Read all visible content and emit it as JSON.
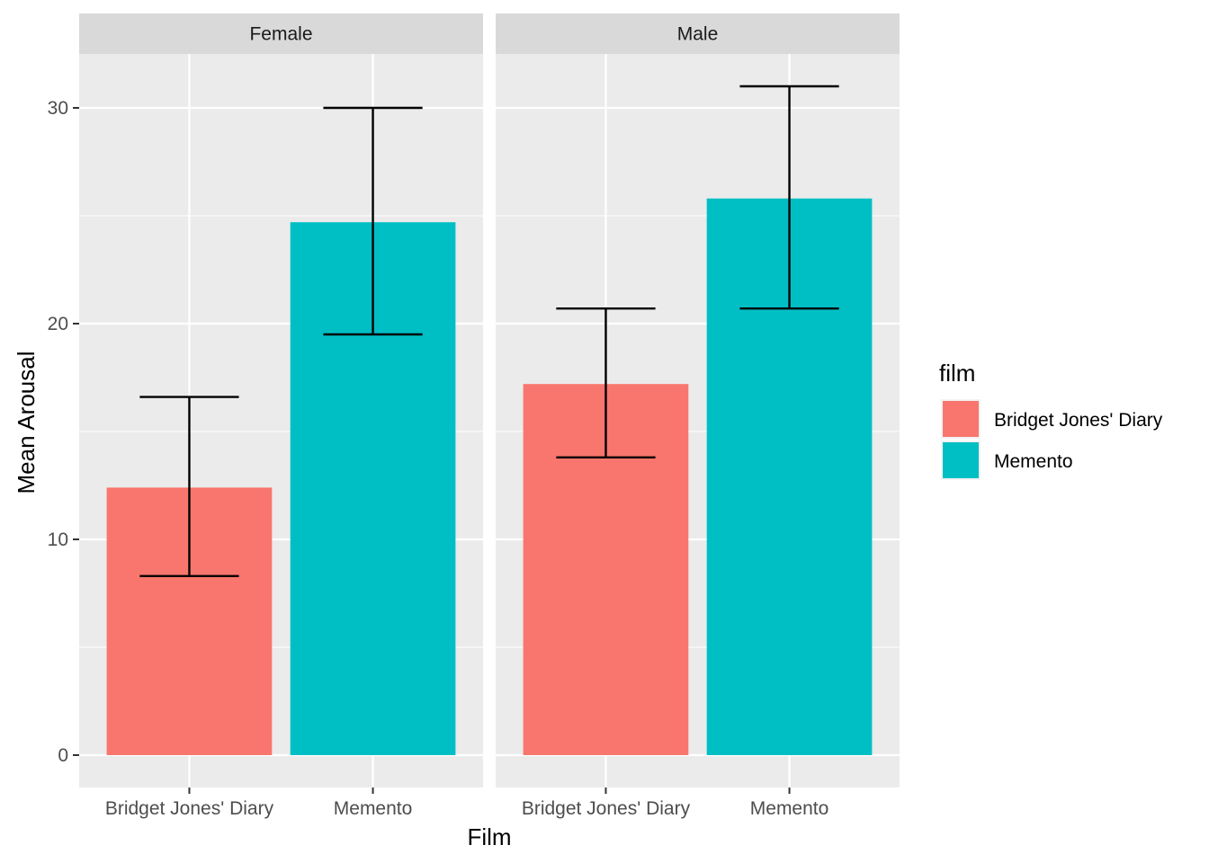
{
  "chart_data": {
    "type": "bar",
    "xlabel": "Film",
    "ylabel": "Mean Arousal",
    "ylim": [
      -1.5,
      32.5
    ],
    "y_ticks": [
      0,
      10,
      20,
      30
    ],
    "categories": [
      "Bridget Jones' Diary",
      "Memento"
    ],
    "facets": [
      {
        "name": "Female",
        "bars": [
          {
            "category": "Bridget Jones' Diary",
            "value": 12.4,
            "error_low": 8.3,
            "error_high": 16.6
          },
          {
            "category": "Memento",
            "value": 24.7,
            "error_low": 19.5,
            "error_high": 30.0
          }
        ]
      },
      {
        "name": "Male",
        "bars": [
          {
            "category": "Bridget Jones' Diary",
            "value": 17.2,
            "error_low": 13.8,
            "error_high": 20.7
          },
          {
            "category": "Memento",
            "value": 25.8,
            "error_low": 20.7,
            "error_high": 31.0
          }
        ]
      }
    ],
    "legend": {
      "title": "film",
      "position": "right",
      "items": [
        {
          "label": "Bridget Jones' Diary",
          "color": "#F8766D"
        },
        {
          "label": "Memento",
          "color": "#00BFC4"
        }
      ]
    },
    "colors": {
      "panel_bg": "#EBEBEB",
      "strip_bg": "#D9D9D9",
      "grid": "#FFFFFF",
      "bar_bridget": "#F8766D",
      "bar_memento": "#00BFC4"
    },
    "grid": true
  }
}
